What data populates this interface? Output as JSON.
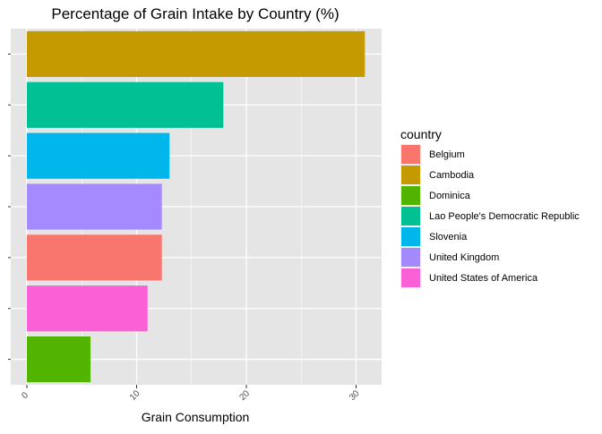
{
  "chart_data": {
    "type": "bar",
    "orientation": "horizontal",
    "title": "Percentage of Grain Intake by Country (%)",
    "xlabel": "Grain Consumption",
    "ylabel": "",
    "xlim": [
      0,
      32
    ],
    "x_ticks": [
      0,
      10,
      20,
      30
    ],
    "x_tick_labels": [
      "0",
      "10",
      "20",
      "30"
    ],
    "categories": [
      "Cambodia",
      "Lao People's Democratic Republic",
      "Slovenia",
      "United Kingdom",
      "Belgium",
      "United States of America",
      "Dominica"
    ],
    "values": [
      30.8,
      17.9,
      13.0,
      12.3,
      12.3,
      11.0,
      5.8
    ],
    "grid": true,
    "legend": {
      "title": "country",
      "position": "right",
      "entries": [
        {
          "label": "Belgium",
          "color": "#F8766D"
        },
        {
          "label": "Cambodia",
          "color": "#C49A00"
        },
        {
          "label": "Dominica",
          "color": "#53B400"
        },
        {
          "label": "Lao People's Democratic Republic",
          "color": "#00C094"
        },
        {
          "label": "Slovenia",
          "color": "#00B6EB"
        },
        {
          "label": "United Kingdom",
          "color": "#A58AFF"
        },
        {
          "label": "United States of America",
          "color": "#FB61D7"
        }
      ]
    },
    "panel_background": "#E5E5E5",
    "grid_color": "#FFFFFF"
  }
}
